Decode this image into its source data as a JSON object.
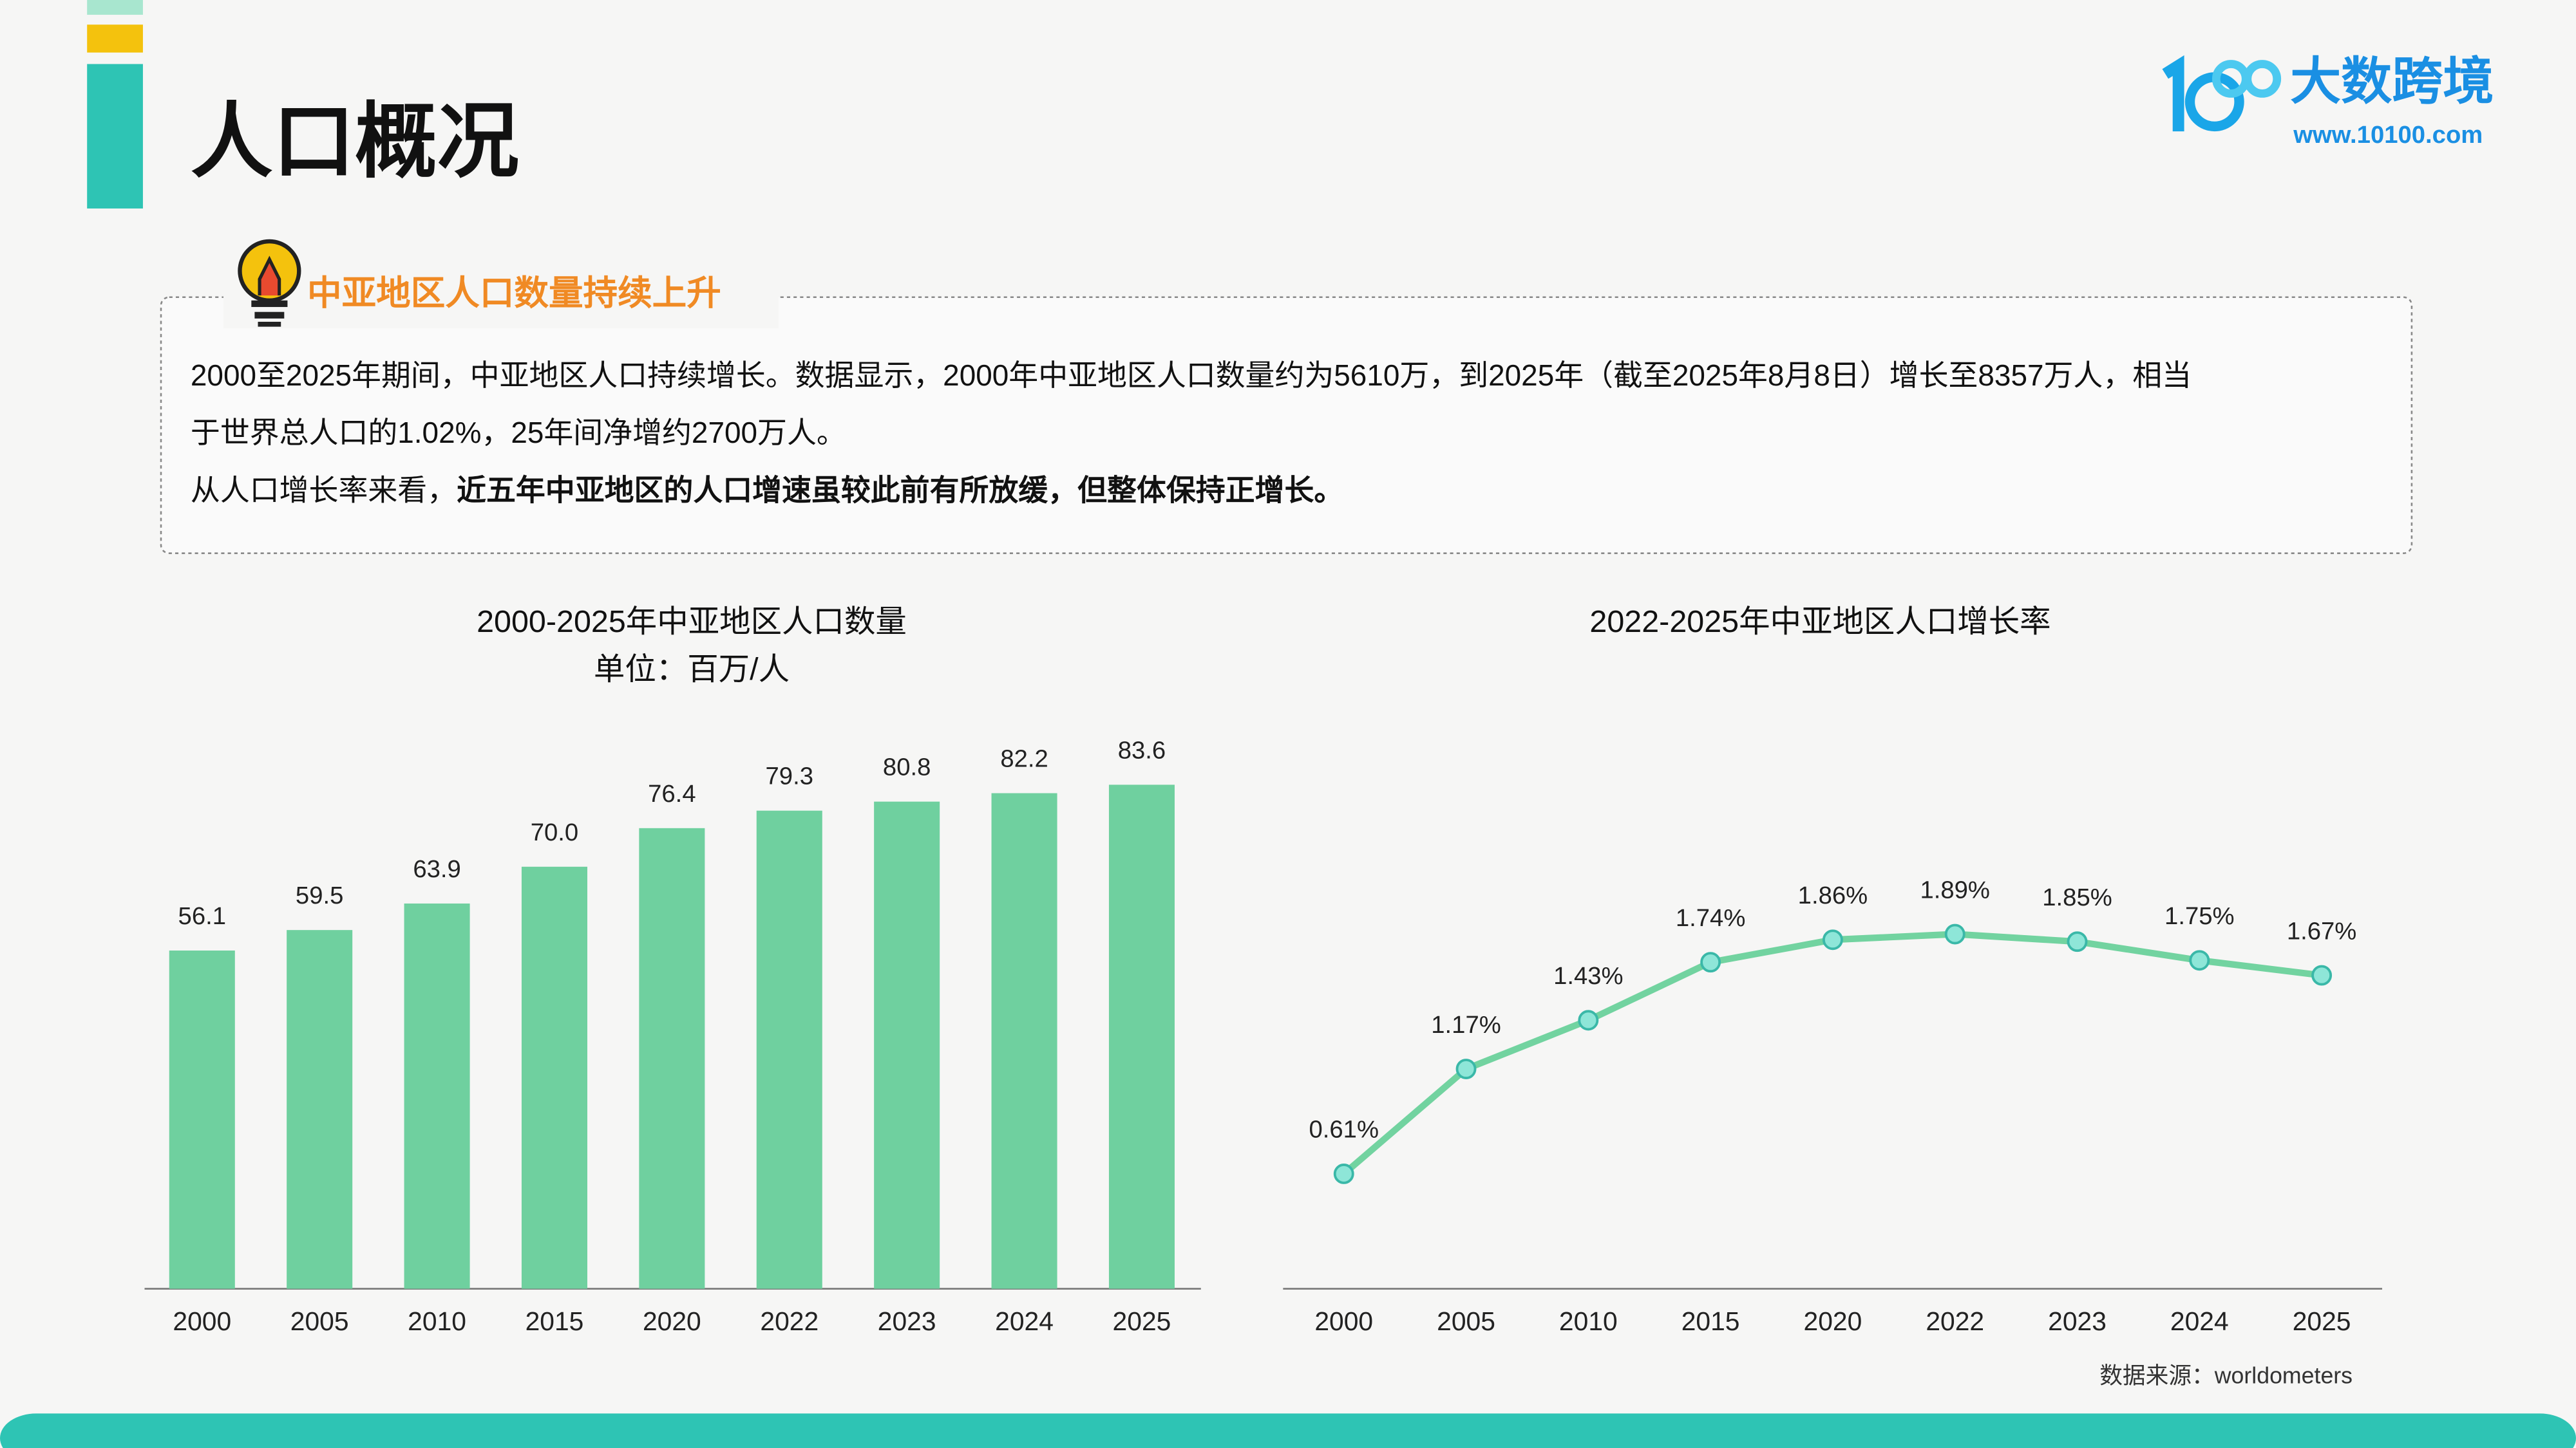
{
  "header": {
    "title": "人口概况",
    "logo_name": "大数跨境",
    "logo_url": "www.10100.com"
  },
  "callout": {
    "title": "中亚地区人口数量持续上升",
    "paragraph_lines": [
      "2000至2025年期间，中亚地区人口持续增长。数据显示，2000年中亚地区人口数量约为5610万，到2025年（截至2025年8月8日）增长至8357万人，相当",
      "于世界总人口的1.02%，25年间净增约2700万人。"
    ],
    "paragraph2": {
      "normal": "从人口增长率来看，",
      "bold": "近五年中亚地区的人口增速虽较此前有所放缓，但整体保持正增长。"
    }
  },
  "chart_data": [
    {
      "type": "bar",
      "title": "2000-2025年中亚地区人口数量",
      "subtitle": "单位：百万/人",
      "categories": [
        "2000",
        "2005",
        "2010",
        "2015",
        "2020",
        "2022",
        "2023",
        "2024",
        "2025"
      ],
      "values": [
        56.1,
        59.5,
        63.9,
        70.0,
        76.4,
        79.3,
        80.8,
        82.2,
        83.6
      ],
      "value_labels": [
        "56.1",
        "59.5",
        "63.9",
        "70.0",
        "76.4",
        "79.3",
        "80.8",
        "82.2",
        "83.6"
      ],
      "color": "#6fd09f"
    },
    {
      "type": "line",
      "title": "2022-2025年中亚地区人口增长率",
      "categories": [
        "2000",
        "2005",
        "2010",
        "2015",
        "2020",
        "2022",
        "2023",
        "2024",
        "2025"
      ],
      "values": [
        0.61,
        1.17,
        1.43,
        1.74,
        1.86,
        1.89,
        1.85,
        1.75,
        1.67
      ],
      "value_labels": [
        "0.61%",
        "1.17%",
        "1.43%",
        "1.74%",
        "1.86%",
        "1.89%",
        "1.85%",
        "1.75%",
        "1.67%"
      ],
      "color": "#72d3a0"
    }
  ],
  "source": "数据来源：worldometers"
}
